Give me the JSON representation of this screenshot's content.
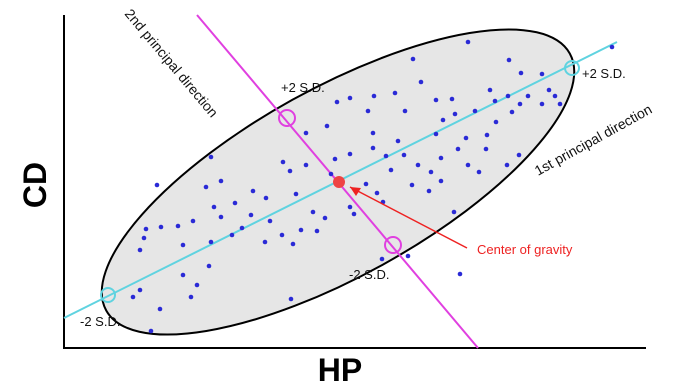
{
  "axes": {
    "x_title": "HP",
    "y_title": "CD"
  },
  "labels": {
    "first_direction": "1st principal direction",
    "second_direction": "2nd principal direction",
    "pc1_plus": "+2 S.D.",
    "pc1_minus": "-2 S.D.",
    "pc2_plus": "+2 S.D.",
    "pc2_minus": "-2 S.D.",
    "center": "Center of gravity"
  },
  "colors": {
    "ellipse_fill": "#e6e6e6",
    "ellipse_stroke": "#000000",
    "first_direction": "#5fd3e0",
    "second_direction": "#e040e0",
    "points": "#2a2ad6",
    "center": "#ee4444",
    "annotation": "#ee2222"
  },
  "points": [
    [
      413,
      59
    ],
    [
      468,
      42
    ],
    [
      612,
      47
    ],
    [
      509,
      60
    ],
    [
      421,
      82
    ],
    [
      521,
      73
    ],
    [
      542,
      74
    ],
    [
      490,
      90
    ],
    [
      495,
      101
    ],
    [
      508,
      96
    ],
    [
      528,
      96
    ],
    [
      549,
      90
    ],
    [
      555,
      96
    ],
    [
      560,
      104
    ],
    [
      542,
      104
    ],
    [
      520,
      104
    ],
    [
      512,
      112
    ],
    [
      496,
      122
    ],
    [
      475,
      111
    ],
    [
      455,
      114
    ],
    [
      443,
      120
    ],
    [
      436,
      100
    ],
    [
      452,
      99
    ],
    [
      436,
      134
    ],
    [
      466,
      138
    ],
    [
      486,
      149
    ],
    [
      458,
      149
    ],
    [
      487,
      135
    ],
    [
      468,
      165
    ],
    [
      507,
      165
    ],
    [
      519,
      155
    ],
    [
      479,
      172
    ],
    [
      441,
      158
    ],
    [
      441,
      181
    ],
    [
      431,
      172
    ],
    [
      395,
      93
    ],
    [
      374,
      96
    ],
    [
      350,
      98
    ],
    [
      337,
      102
    ],
    [
      327,
      126
    ],
    [
      306,
      133
    ],
    [
      368,
      111
    ],
    [
      373,
      133
    ],
    [
      398,
      141
    ],
    [
      404,
      155
    ],
    [
      386,
      156
    ],
    [
      373,
      148
    ],
    [
      350,
      154
    ],
    [
      335,
      159
    ],
    [
      306,
      165
    ],
    [
      283,
      162
    ],
    [
      405,
      111
    ],
    [
      290,
      171
    ],
    [
      391,
      170
    ],
    [
      418,
      165
    ],
    [
      412,
      185
    ],
    [
      429,
      191
    ],
    [
      383,
      202
    ],
    [
      366,
      184
    ],
    [
      377,
      193
    ],
    [
      350,
      207
    ],
    [
      354,
      214
    ],
    [
      325,
      218
    ],
    [
      317,
      231
    ],
    [
      313,
      212
    ],
    [
      296,
      194
    ],
    [
      266,
      198
    ],
    [
      253,
      191
    ],
    [
      221,
      181
    ],
    [
      206,
      187
    ],
    [
      214,
      207
    ],
    [
      235,
      203
    ],
    [
      251,
      215
    ],
    [
      270,
      221
    ],
    [
      242,
      228
    ],
    [
      265,
      242
    ],
    [
      282,
      235
    ],
    [
      293,
      244
    ],
    [
      301,
      230
    ],
    [
      232,
      235
    ],
    [
      221,
      217
    ],
    [
      193,
      221
    ],
    [
      178,
      226
    ],
    [
      161,
      227
    ],
    [
      146,
      229
    ],
    [
      144,
      238
    ],
    [
      140,
      250
    ],
    [
      183,
      245
    ],
    [
      183,
      275
    ],
    [
      197,
      285
    ],
    [
      191,
      297
    ],
    [
      140,
      290
    ],
    [
      133,
      297
    ],
    [
      160,
      309
    ],
    [
      209,
      266
    ],
    [
      211,
      242
    ],
    [
      151,
      331
    ],
    [
      157,
      185
    ],
    [
      211,
      157
    ],
    [
      291,
      299
    ],
    [
      382,
      259
    ],
    [
      408,
      256
    ],
    [
      460,
      274
    ],
    [
      454,
      212
    ],
    [
      331,
      174
    ]
  ]
}
